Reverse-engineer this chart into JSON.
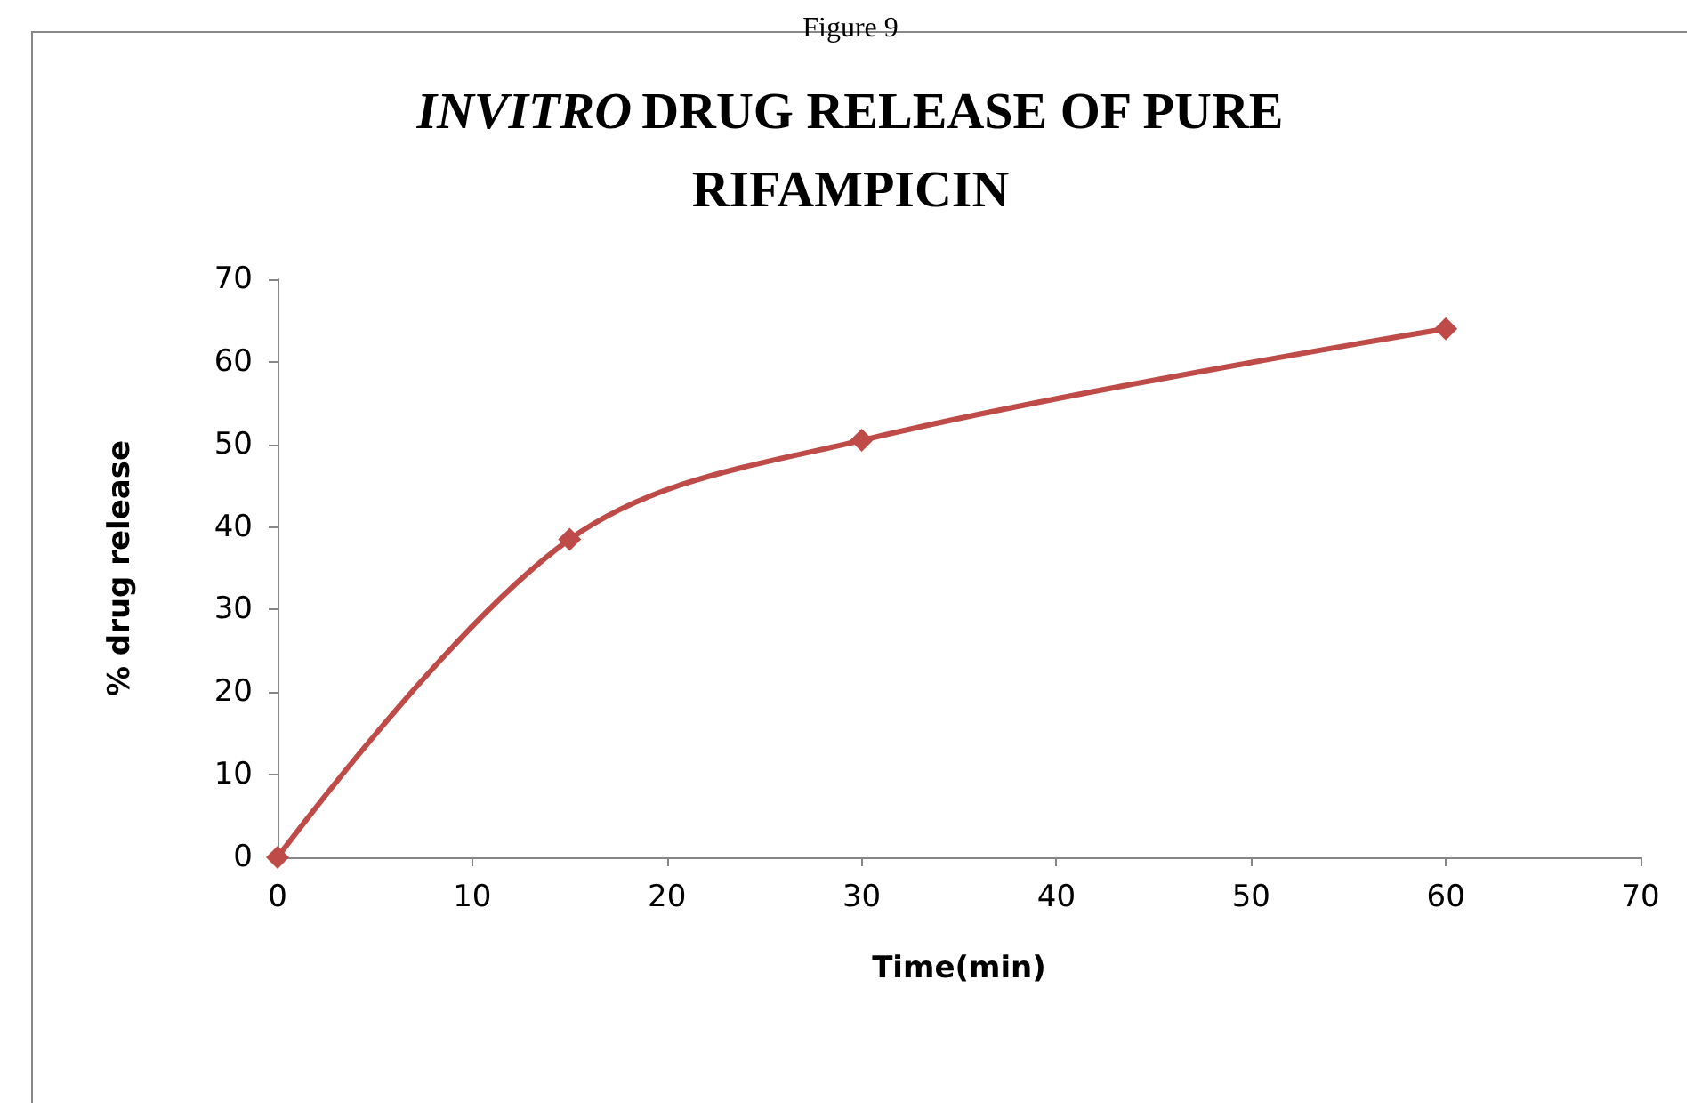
{
  "chart_data": {
    "type": "line",
    "title": "INVITRO DRUG RELEASE OF PURE RIFAMPICIN",
    "xlabel": "Time(min)",
    "ylabel": "% drug release",
    "annotations": [
      "Figure 9"
    ],
    "x": [
      0,
      15,
      30,
      60
    ],
    "series": [
      {
        "color": "#be4b48",
        "values": [
          0,
          38.5,
          50.5,
          64
        ]
      }
    ],
    "xlim": [
      0,
      70
    ],
    "xticks": [
      0,
      10,
      20,
      30,
      40,
      50,
      60,
      70
    ],
    "ylim": [
      0,
      70
    ],
    "yticks": [
      0,
      10,
      20,
      30,
      40,
      50,
      60,
      70
    ],
    "grid": false,
    "marker": "diamond",
    "line_style": "solid"
  }
}
